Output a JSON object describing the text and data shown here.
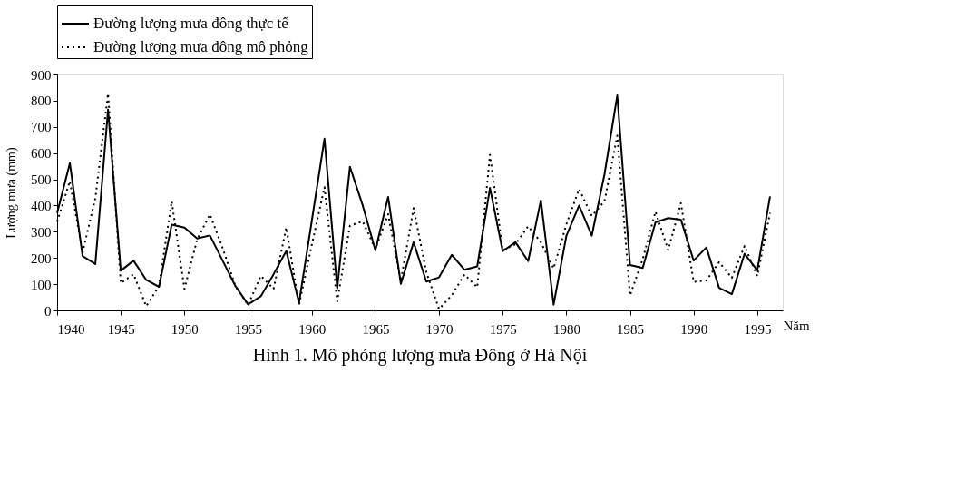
{
  "chart_data": {
    "type": "line",
    "title": "Hình 1. Mô phỏng lượng mưa Đông ở Hà Nội",
    "xlabel": "Năm",
    "ylabel": "Lượng mưa (mm)",
    "x": [
      1940,
      1941,
      1942,
      1943,
      1944,
      1945,
      1946,
      1947,
      1948,
      1949,
      1950,
      1951,
      1952,
      1953,
      1954,
      1955,
      1956,
      1957,
      1958,
      1959,
      1960,
      1961,
      1962,
      1963,
      1964,
      1965,
      1966,
      1967,
      1968,
      1969,
      1970,
      1971,
      1972,
      1973,
      1974,
      1975,
      1976,
      1977,
      1978,
      1979,
      1980,
      1981,
      1982,
      1983,
      1984,
      1985,
      1986,
      1987,
      1988,
      1989,
      1990,
      1991,
      1992,
      1993,
      1994,
      1995,
      1996
    ],
    "series": [
      {
        "name": "Đường lượng mưa đông thực tế",
        "color": "#000000",
        "line_style": "solid",
        "values": [
          371,
          562,
          207,
          177,
          766,
          151,
          190,
          116,
          90,
          327,
          316,
          274,
          286,
          190,
          93,
          23,
          54,
          138,
          227,
          29,
          340,
          655,
          84,
          548,
          401,
          229,
          433,
          101,
          260,
          110,
          126,
          212,
          155,
          168,
          467,
          226,
          260,
          188,
          420,
          22,
          284,
          400,
          285,
          520,
          820,
          173,
          162,
          336,
          352,
          346,
          190,
          240,
          86,
          62,
          216,
          153,
          435
        ]
      },
      {
        "name": "Đường lượng mưa đông mô phỏng",
        "color": "#000000",
        "line_style": "dotted",
        "values": [
          338,
          493,
          221,
          427,
          827,
          104,
          138,
          16,
          93,
          416,
          82,
          271,
          366,
          238,
          93,
          21,
          132,
          82,
          316,
          21,
          249,
          470,
          34,
          323,
          340,
          234,
          367,
          112,
          390,
          146,
          5,
          58,
          137,
          88,
          594,
          230,
          252,
          321,
          260,
          160,
          328,
          463,
          360,
          417,
          667,
          57,
          196,
          377,
          230,
          409,
          109,
          114,
          184,
          124,
          246,
          131,
          372
        ]
      }
    ],
    "xlim": [
      1940,
      1997
    ],
    "xticks": [
      1940,
      1945,
      1950,
      1955,
      1960,
      1965,
      1970,
      1975,
      1980,
      1985,
      1990,
      1995
    ],
    "ylim": [
      0,
      900
    ],
    "yticks": [
      0,
      100,
      200,
      300,
      400,
      500,
      600,
      700,
      800,
      900
    ],
    "grid": false,
    "legend": "top",
    "marker": "none"
  }
}
